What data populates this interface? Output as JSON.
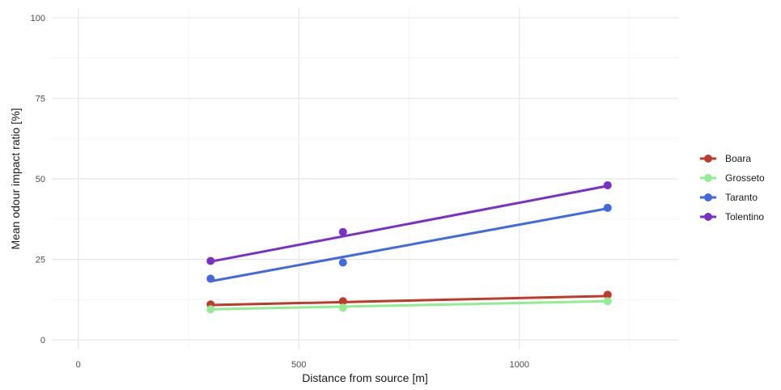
{
  "chart_data": {
    "type": "line",
    "title": "",
    "xlabel": "Distance from source [m]",
    "ylabel": "Mean odour impact ratio [%]",
    "xlim": [
      -60,
      1360
    ],
    "ylim": [
      -3,
      103
    ],
    "x_ticks": [
      0,
      500,
      1000
    ],
    "x_tick_labels": [
      "0",
      "500",
      "1000"
    ],
    "x_minor_ticks": [
      250,
      750,
      1250
    ],
    "y_ticks": [
      0,
      25,
      50,
      75,
      100
    ],
    "y_tick_labels": [
      "0",
      "25",
      "50",
      "75",
      "100"
    ],
    "y_minor_ticks": [
      12.5,
      37.5,
      62.5,
      87.5
    ],
    "grid": true,
    "legend_position": "right",
    "series": [
      {
        "name": "Boara",
        "color": "#c0392b",
        "x": [
          300,
          600,
          1200
        ],
        "y": [
          11,
          12,
          14
        ],
        "trend": [
          [
            300,
            10.8
          ],
          [
            1200,
            13.6
          ]
        ]
      },
      {
        "name": "Grosseto",
        "color": "#90ee90",
        "x": [
          300,
          600,
          1200
        ],
        "y": [
          9.5,
          10,
          12
        ],
        "trend": [
          [
            300,
            9.5
          ],
          [
            1200,
            12.0
          ]
        ]
      },
      {
        "name": "Taranto",
        "color": "#4169e1",
        "x": [
          300,
          600,
          1200
        ],
        "y": [
          19,
          24,
          41
        ],
        "trend": [
          [
            300,
            18.2
          ],
          [
            1200,
            40.8
          ]
        ]
      },
      {
        "name": "Tolentino",
        "color": "#7b2fc9",
        "x": [
          300,
          600,
          1200
        ],
        "y": [
          24.5,
          33.5,
          48
        ],
        "trend": [
          [
            300,
            24.3
          ],
          [
            1200,
            47.8
          ]
        ]
      }
    ]
  }
}
